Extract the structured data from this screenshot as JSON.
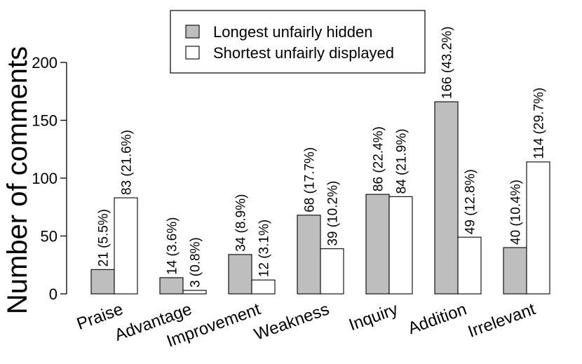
{
  "chart_data": {
    "type": "bar",
    "ylabel": "Number of comments",
    "xlabel": "",
    "ylim": [
      0,
      200
    ],
    "yticks": [
      0,
      50,
      100,
      150,
      200
    ],
    "categories": [
      "Praise",
      "Advantage",
      "Improvement",
      "Weakness",
      "Inquiry",
      "Addition",
      "Irrelevant"
    ],
    "series": [
      {
        "name": "Longest unfairly hidden",
        "color": "#bebebe",
        "values": [
          21,
          14,
          34,
          68,
          86,
          166,
          40
        ],
        "labels": [
          "21 (5.5%)",
          "14 (3.6%)",
          "34 (8.9%)",
          "68 (17.7%)",
          "86 (22.4%)",
          "166 (43.2%)",
          "40 (10.4%)"
        ]
      },
      {
        "name": "Shortest unfairly displayed",
        "color": "#ffffff",
        "values": [
          83,
          3,
          12,
          39,
          84,
          49,
          114
        ],
        "labels": [
          "83 (21.6%)",
          "3 (0.8%)",
          "12 (3.1%)",
          "39 (10.2%)",
          "84 (21.9%)",
          "49 (12.8%)",
          "114 (29.7%)"
        ]
      }
    ],
    "legend": "top-center",
    "grid": false
  }
}
